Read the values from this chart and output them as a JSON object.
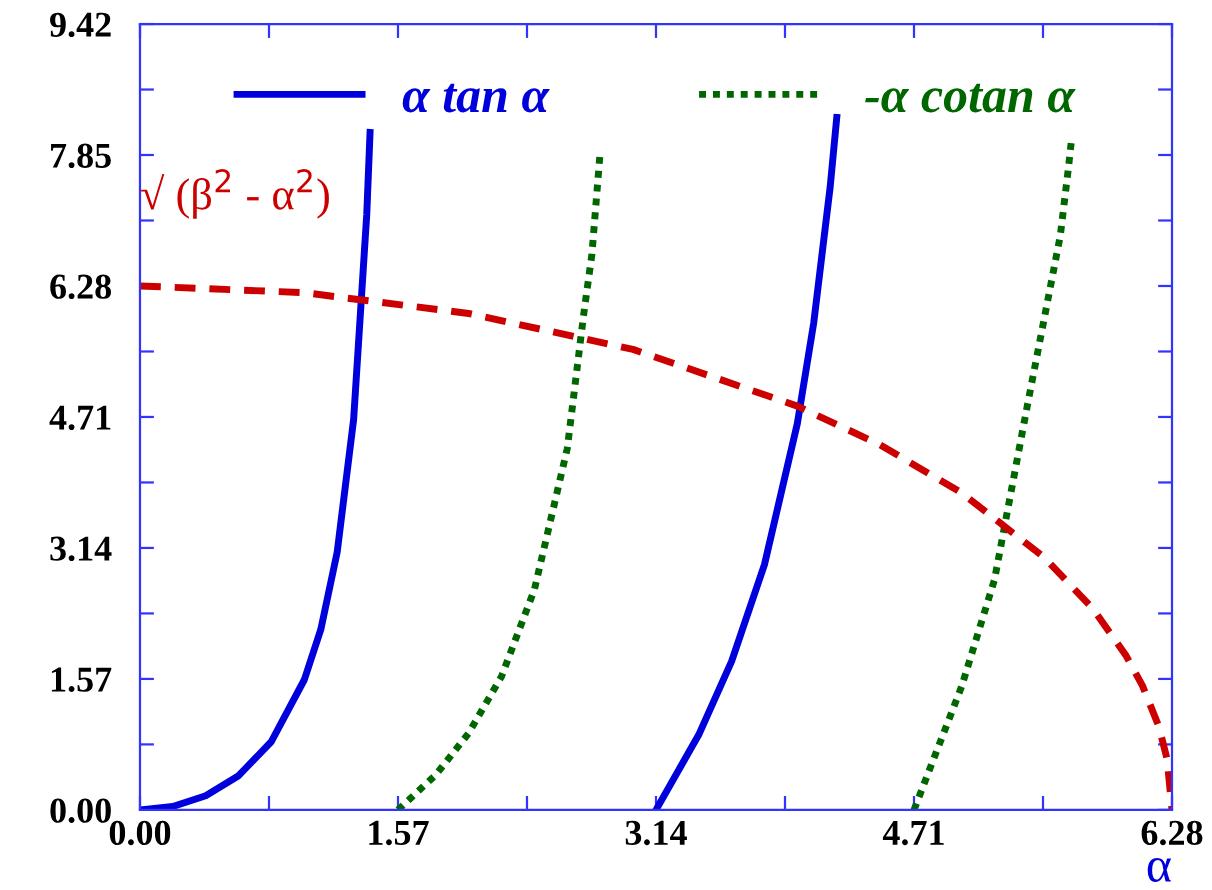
{
  "chart_data": {
    "type": "line",
    "xlabel": "α",
    "series": [
      {
        "name": "α tan α",
        "color": "#0000dd",
        "line_style": "solid",
        "x": [
          0,
          0.2,
          0.4,
          0.6,
          0.8,
          1.0,
          1.1,
          1.2,
          1.3,
          1.38,
          1.4,
          null,
          3.14,
          3.4,
          3.6,
          3.8,
          4.0,
          4.1,
          4.2,
          4.24
        ],
        "values": [
          0,
          0.04,
          0.17,
          0.41,
          0.82,
          1.56,
          2.16,
          3.09,
          4.68,
          7.14,
          8.12,
          null,
          0,
          0.9,
          1.78,
          2.94,
          4.63,
          5.84,
          7.47,
          8.3
        ]
      },
      {
        "name": "-α cotan α",
        "color": "#006600",
        "line_style": "dotted",
        "x": [
          1.57,
          1.8,
          2.0,
          2.2,
          2.4,
          2.6,
          2.7,
          2.75,
          2.8,
          null,
          4.71,
          5.0,
          5.2,
          5.4,
          5.6,
          5.65,
          5.67
        ],
        "values": [
          0,
          0.42,
          0.92,
          1.6,
          2.64,
          4.33,
          5.94,
          6.66,
          7.88,
          null,
          0,
          1.48,
          2.76,
          4.85,
          6.88,
          7.7,
          8.06
        ]
      },
      {
        "color": "#cc0000",
        "line_style": "dashed",
        "x": [
          0,
          1,
          2,
          3,
          4,
          4.5,
          5,
          5.5,
          5.8,
          6.0,
          6.1,
          6.2,
          6.25,
          6.28
        ],
        "values": [
          6.28,
          6.2,
          5.95,
          5.52,
          4.84,
          4.38,
          3.8,
          3.03,
          2.41,
          1.85,
          1.49,
          1.0,
          0.61,
          0
        ]
      }
    ],
    "annotations": [
      {
        "text": "√ (β$^{2}$ - α$^{2}$)",
        "x": 0,
        "y": 6.28
      }
    ],
    "xlim": [
      0,
      6.28
    ],
    "ylim": [
      0,
      9.42
    ],
    "xticks": [
      {
        "value": 0,
        "label": "0.00"
      },
      {
        "value": 0.785,
        "label": null
      },
      1.57,
      {
        "value": 2.355,
        "label": null
      },
      3.14,
      {
        "value": 3.925,
        "label": null
      },
      4.71,
      {
        "value": 5.495,
        "label": null
      },
      6.28
    ],
    "yticks": [
      {
        "value": 0,
        "label": "0.00"
      },
      {
        "value": 0.785,
        "label": null
      },
      1.57,
      {
        "value": 2.355,
        "label": null
      },
      3.14,
      {
        "value": 3.925,
        "label": null
      },
      4.71,
      {
        "value": 5.495,
        "label": null
      },
      6.28,
      {
        "value": 7.065,
        "label": null
      },
      7.85,
      {
        "value": 8.635,
        "label": null
      },
      9.42
    ],
    "legend": "top",
    "grid": false
  }
}
